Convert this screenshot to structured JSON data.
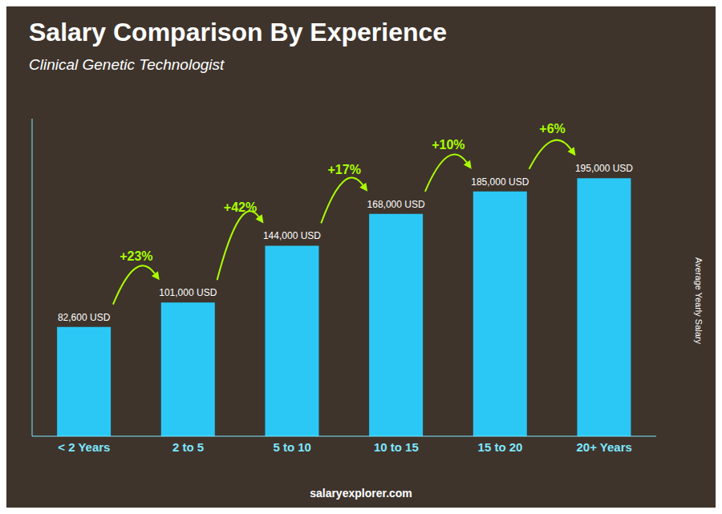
{
  "chart_data": {
    "type": "bar",
    "title": "Salary Comparison By Experience",
    "subtitle": "Clinical Genetic Technologist",
    "categories": [
      "< 2 Years",
      "2 to 5",
      "5 to 10",
      "10 to 15",
      "15 to 20",
      "20+ Years"
    ],
    "values": [
      82600,
      101000,
      144000,
      168000,
      185000,
      195000
    ],
    "value_labels": [
      "82,600 USD",
      "101,000 USD",
      "144,000 USD",
      "168,000 USD",
      "185,000 USD",
      "195,000 USD"
    ],
    "data_labels": true,
    "color": "#2bc8f5",
    "annotations": [
      {
        "text": "+23%",
        "color": "#aaff00"
      },
      {
        "text": "+42%",
        "color": "#aaff00"
      },
      {
        "text": "+17%",
        "color": "#aaff00"
      },
      {
        "text": "+10%",
        "color": "#aaff00"
      },
      {
        "text": "+6%",
        "color": "#aaff00"
      }
    ],
    "ylabel": "Average Yearly Salary",
    "footer": "salaryexplorer.com",
    "ylim": [
      0,
      240000
    ],
    "tick_labels": "x",
    "grid": false
  }
}
